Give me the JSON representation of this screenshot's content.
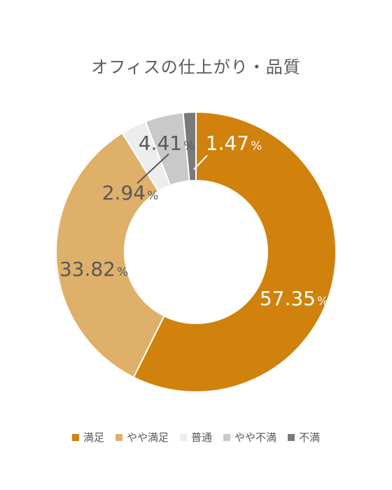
{
  "chart_data": {
    "type": "pie",
    "title": "オフィスの仕上がり・品質",
    "categories": [
      "満足",
      "やや満足",
      "普通",
      "やや不満",
      "不満"
    ],
    "values": [
      57.35,
      33.82,
      2.94,
      4.41,
      1.47
    ],
    "data_labels": [
      "57.35",
      "33.82",
      "2.94",
      "4.41",
      "1.47"
    ],
    "unit": "%",
    "colors": [
      "#D0820C",
      "#DFB06A",
      "#EDEDED",
      "#C9C9C9",
      "#7A7A7A"
    ],
    "legend_position": "bottom",
    "donut": true
  }
}
